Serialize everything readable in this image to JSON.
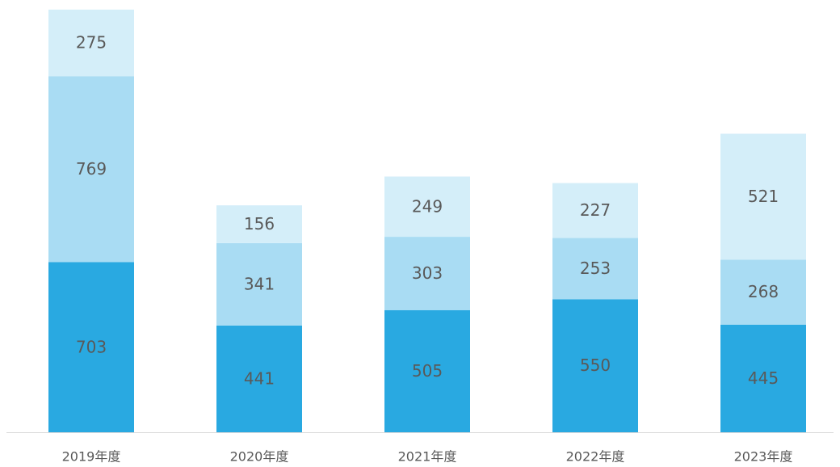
{
  "chart_data": {
    "type": "stacked_bar",
    "categories": [
      "2019年度",
      "2020年度",
      "2021年度",
      "2022年度",
      "2023年度"
    ],
    "series": [
      {
        "color": "#29a9e1",
        "values": [
          703,
          441,
          505,
          550,
          445
        ]
      },
      {
        "color": "#a9dcf3",
        "values": [
          769,
          341,
          303,
          253,
          268
        ]
      },
      {
        "color": "#d4eef9",
        "values": [
          275,
          156,
          249,
          227,
          521
        ]
      }
    ],
    "ylim": [
      0,
      1750
    ]
  }
}
